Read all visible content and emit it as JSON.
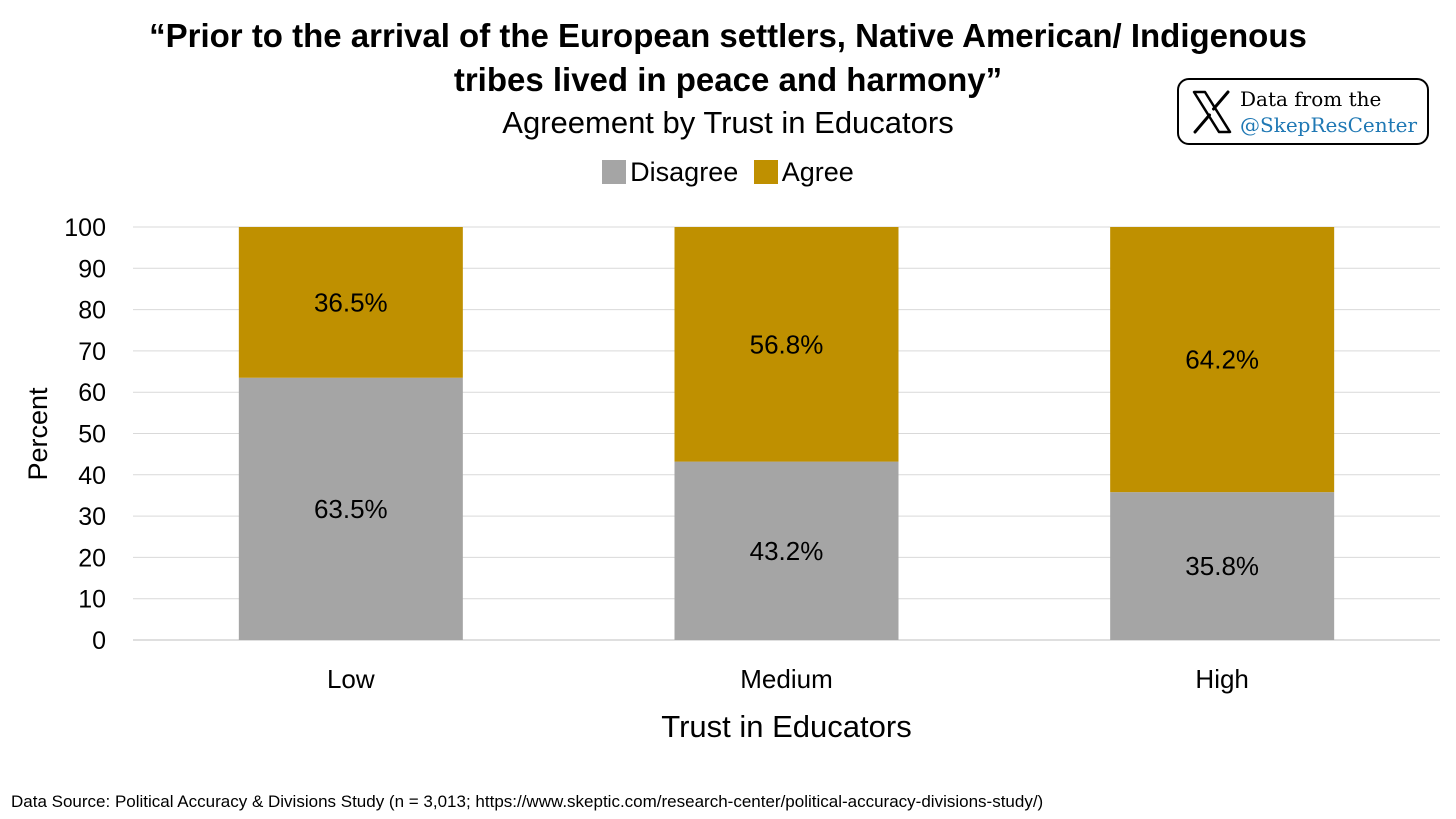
{
  "title_lines": [
    "“Prior to the arrival of the European settlers, Native American/ Indigenous",
    "tribes lived in peace and harmony”"
  ],
  "subtitle": "Agreement by Trust in Educators",
  "badge": {
    "line1": "Data from the",
    "line2": "@SkepResCenter",
    "icon": "x-logo-icon"
  },
  "source": "Data Source: Political Accuracy & Divisions Study (n = 3,013; https://www.skeptic.com/research-center/political-accuracy-divisions-study/)",
  "chart_data": {
    "type": "bar",
    "stacked": true,
    "categories": [
      "Low",
      "Medium",
      "High"
    ],
    "series": [
      {
        "name": "Disagree",
        "values": [
          63.5,
          43.2,
          35.8
        ],
        "labels": [
          "63.5%",
          "43.2%",
          "35.8%"
        ],
        "color": "#a5a5a5"
      },
      {
        "name": "Agree",
        "values": [
          36.5,
          56.8,
          64.2
        ],
        "labels": [
          "36.5%",
          "56.8%",
          "64.2%"
        ],
        "color": "#bf9000"
      }
    ],
    "xlabel": "Trust in Educators",
    "ylabel": "Percent",
    "ylim": [
      0,
      100
    ],
    "yticks": [
      0,
      10,
      20,
      30,
      40,
      50,
      60,
      70,
      80,
      90,
      100
    ],
    "grid": true,
    "legend": "top-center"
  }
}
